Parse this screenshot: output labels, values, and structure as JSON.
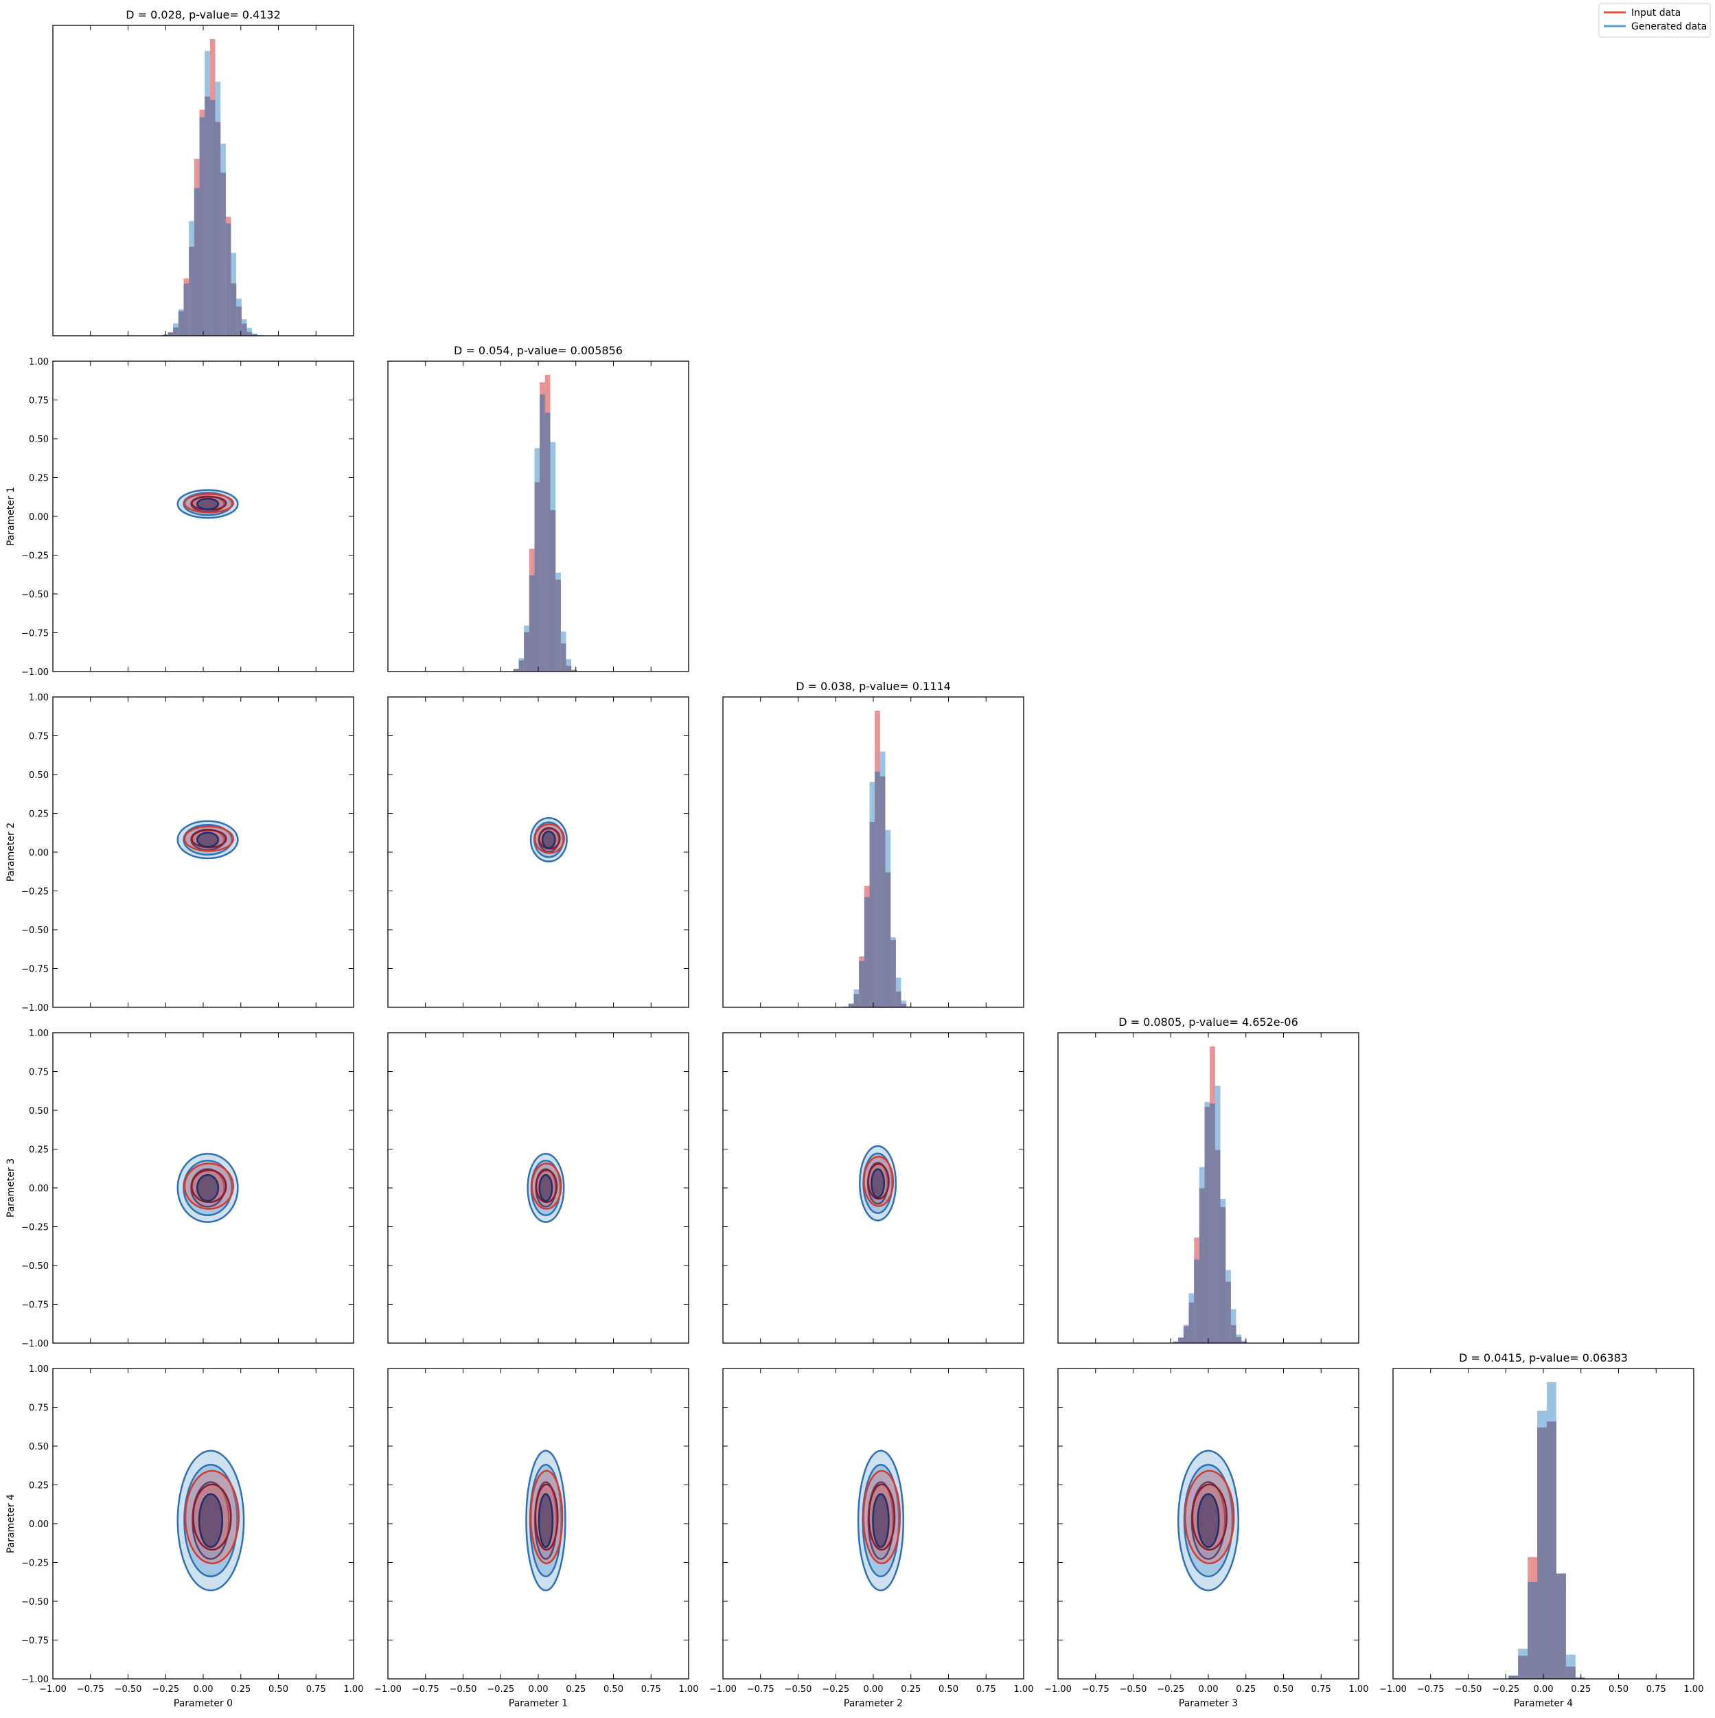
{
  "legend": {
    "placement": "top-right",
    "items": [
      {
        "label": "Input data",
        "color": "#e8543f"
      },
      {
        "label": "Generated data",
        "color": "#5b9bd5"
      }
    ]
  },
  "chart_data": {
    "type": "corner-plot",
    "parameters": [
      "Parameter 0",
      "Parameter 1",
      "Parameter 2",
      "Parameter 3",
      "Parameter 4"
    ],
    "axis_range": [
      -1.0,
      1.0
    ],
    "ticks": [
      -1.0,
      -0.75,
      -0.5,
      -0.25,
      0.0,
      0.25,
      0.5,
      0.75,
      1.0
    ],
    "tick_labels": [
      "−1.00",
      "−0.75",
      "−0.50",
      "−0.25",
      "0.00",
      "0.25",
      "0.50",
      "0.75",
      "1.00"
    ],
    "colors": {
      "input": "#e06666",
      "generated": "#6fa8d6",
      "overlap": "#7a7a9e"
    },
    "diagonal": [
      {
        "parameter": "Parameter 0",
        "title": "D = 0.028, p-value= 0.4132",
        "center": 0.06,
        "spread": 0.09,
        "skew": -0.5
      },
      {
        "parameter": "Parameter 1",
        "title": "D = 0.054, p-value= 0.005856",
        "center": 0.03,
        "spread": 0.06,
        "skew": 0.6
      },
      {
        "parameter": "Parameter 2",
        "title": "D = 0.038, p-value= 0.1114",
        "center": 0.02,
        "spread": 0.06,
        "skew": 0.8
      },
      {
        "parameter": "Parameter 3",
        "title": "D = 0.0805, p-value= 4.652e-06",
        "center": 0.0,
        "spread": 0.07,
        "skew": 1.2
      },
      {
        "parameter": "Parameter 4",
        "title": "D = 0.0415, p-value= 0.06383",
        "center": 0.0,
        "spread": 0.07,
        "skew": 1.5
      }
    ],
    "off_diagonal": [
      {
        "x": "Parameter 0",
        "y": "Parameter 1",
        "cx": 0.03,
        "cy": 0.08,
        "rx": 0.2,
        "ry": 0.09
      },
      {
        "x": "Parameter 0",
        "y": "Parameter 2",
        "cx": 0.03,
        "cy": 0.08,
        "rx": 0.2,
        "ry": 0.12
      },
      {
        "x": "Parameter 1",
        "y": "Parameter 2",
        "cx": 0.07,
        "cy": 0.08,
        "rx": 0.12,
        "ry": 0.14
      },
      {
        "x": "Parameter 0",
        "y": "Parameter 3",
        "cx": 0.03,
        "cy": 0.0,
        "rx": 0.2,
        "ry": 0.22
      },
      {
        "x": "Parameter 1",
        "y": "Parameter 3",
        "cx": 0.05,
        "cy": 0.0,
        "rx": 0.12,
        "ry": 0.22
      },
      {
        "x": "Parameter 2",
        "y": "Parameter 3",
        "cx": 0.03,
        "cy": 0.03,
        "rx": 0.12,
        "ry": 0.24
      },
      {
        "x": "Parameter 0",
        "y": "Parameter 4",
        "cx": 0.05,
        "cy": 0.02,
        "rx": 0.22,
        "ry": 0.45
      },
      {
        "x": "Parameter 1",
        "y": "Parameter 4",
        "cx": 0.05,
        "cy": 0.02,
        "rx": 0.13,
        "ry": 0.45
      },
      {
        "x": "Parameter 2",
        "y": "Parameter 4",
        "cx": 0.05,
        "cy": 0.02,
        "rx": 0.15,
        "ry": 0.45
      },
      {
        "x": "Parameter 3",
        "y": "Parameter 4",
        "cx": 0.0,
        "cy": 0.02,
        "rx": 0.2,
        "ry": 0.45
      }
    ]
  }
}
